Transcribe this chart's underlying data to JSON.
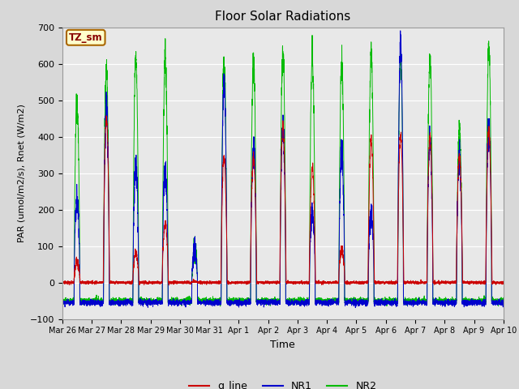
{
  "title": "Floor Solar Radiations",
  "xlabel": "Time",
  "ylabel": "PAR (umol/m2/s), Rnet (W/m2)",
  "ylim": [
    -100,
    700
  ],
  "yticks": [
    -100,
    0,
    100,
    200,
    300,
    400,
    500,
    600,
    700
  ],
  "bg_color": "#d8d8d8",
  "plot_bg_color": "#e8e8e8",
  "line_colors": {
    "q_line": "#cc0000",
    "NR1": "#0000cc",
    "NR2": "#00bb00"
  },
  "annotation_text": "TZ_sm",
  "annotation_bg": "#ffffcc",
  "annotation_border": "#aa6600",
  "n_days": 15,
  "points_per_day": 288,
  "day_labels": [
    "Mar 26",
    "Mar 27",
    "Mar 28",
    "Mar 29",
    "Mar 30",
    "Mar 31",
    "Apr 1",
    "Apr 2",
    "Apr 3",
    "Apr 4",
    "Apr 5",
    "Apr 6",
    "Apr 7",
    "Apr 8",
    "Apr 9",
    "Apr 10"
  ],
  "nr2_peaks": [
    490,
    585,
    615,
    615,
    95,
    605,
    605,
    635,
    620,
    595,
    620,
    615,
    615,
    420,
    645
  ],
  "nr1_peaks": [
    230,
    485,
    315,
    315,
    90,
    540,
    375,
    430,
    200,
    355,
    195,
    650,
    390,
    350,
    420
  ],
  "q_peaks": [
    60,
    450,
    80,
    160,
    0,
    345,
    345,
    430,
    315,
    90,
    390,
    405,
    400,
    350,
    420
  ],
  "nr2_night": -50,
  "nr1_night": -55,
  "q_night": 0
}
